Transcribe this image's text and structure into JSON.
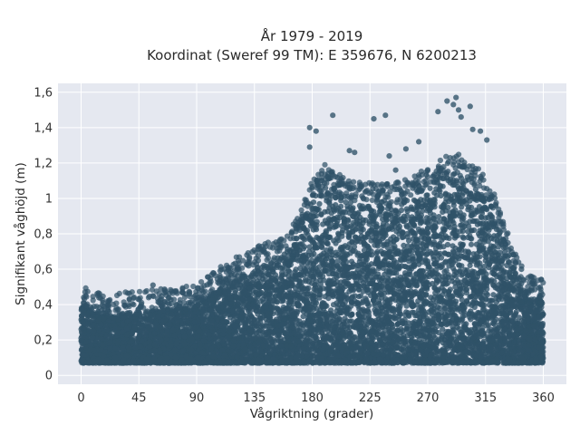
{
  "chart_data": {
    "type": "scatter",
    "title": "År 1979 - 2019",
    "subtitle": "Koordinat (Sweref 99 TM): E 359676, N 6200213",
    "xlabel": "Vågriktning (grader)",
    "ylabel": "Signifikant våghöjd (m)",
    "xlim": [
      -18,
      378
    ],
    "ylim": [
      -0.05,
      1.65
    ],
    "x_ticks": [
      0,
      45,
      90,
      135,
      180,
      225,
      270,
      315,
      360
    ],
    "x_tick_labels": [
      "0",
      "45",
      "90",
      "135",
      "180",
      "225",
      "270",
      "315",
      "360"
    ],
    "y_ticks": [
      0,
      0.2,
      0.4,
      0.6,
      0.8,
      1.0,
      1.2,
      1.4,
      1.6
    ],
    "y_tick_labels": [
      "0",
      "0,2",
      "0,4",
      "0,6",
      "0,8",
      "1",
      "1,2",
      "1,4",
      "1,6"
    ],
    "grid": true,
    "background_color": "#e5e8f0",
    "marker_color": "#2f5268",
    "upper_envelope": {
      "x": [
        0,
        10,
        20,
        45,
        60,
        80,
        90,
        100,
        110,
        120,
        135,
        150,
        160,
        170,
        180,
        190,
        200,
        210,
        225,
        240,
        255,
        270,
        280,
        290,
        300,
        310,
        320,
        330,
        340,
        350,
        360
      ],
      "y": [
        0.4,
        0.35,
        0.34,
        0.36,
        0.37,
        0.38,
        0.4,
        0.45,
        0.5,
        0.55,
        0.6,
        0.65,
        0.7,
        0.78,
        1.0,
        1.08,
        1.02,
        0.98,
        0.97,
        0.97,
        1.0,
        1.05,
        1.1,
        1.15,
        1.1,
        1.05,
        0.95,
        0.75,
        0.55,
        0.45,
        0.42
      ]
    },
    "lower_bound": 0.07,
    "outliers": [
      {
        "x": 178,
        "y": 1.4
      },
      {
        "x": 183,
        "y": 1.38
      },
      {
        "x": 196,
        "y": 1.47
      },
      {
        "x": 228,
        "y": 1.45
      },
      {
        "x": 237,
        "y": 1.47
      },
      {
        "x": 278,
        "y": 1.49
      },
      {
        "x": 285,
        "y": 1.55
      },
      {
        "x": 292,
        "y": 1.57
      },
      {
        "x": 290,
        "y": 1.53
      },
      {
        "x": 294,
        "y": 1.5
      },
      {
        "x": 296,
        "y": 1.46
      },
      {
        "x": 303,
        "y": 1.52
      },
      {
        "x": 305,
        "y": 1.39
      },
      {
        "x": 311,
        "y": 1.38
      },
      {
        "x": 316,
        "y": 1.33
      },
      {
        "x": 209,
        "y": 1.27
      },
      {
        "x": 213,
        "y": 1.26
      },
      {
        "x": 263,
        "y": 1.32
      },
      {
        "x": 253,
        "y": 1.28
      },
      {
        "x": 178,
        "y": 1.29
      },
      {
        "x": 240,
        "y": 1.24
      },
      {
        "x": 245,
        "y": 1.16
      },
      {
        "x": 56,
        "y": 0.51
      },
      {
        "x": 343,
        "y": 0.6
      },
      {
        "x": 351,
        "y": 0.48
      },
      {
        "x": 337,
        "y": 0.68
      }
    ]
  }
}
